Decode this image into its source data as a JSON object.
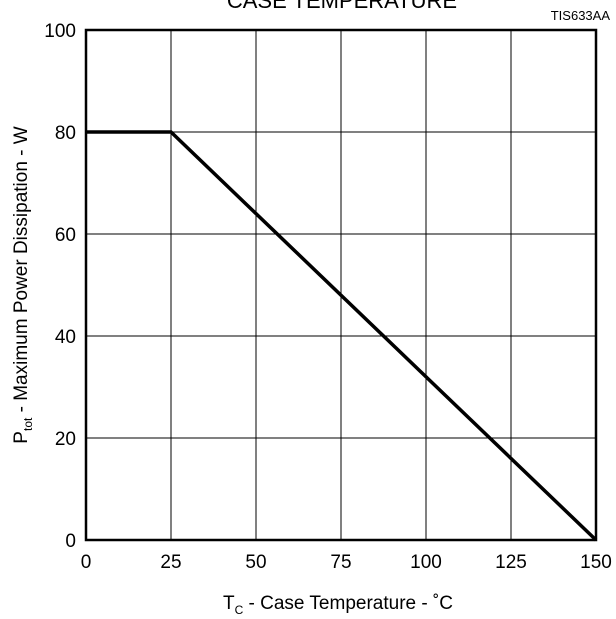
{
  "chart_data": {
    "type": "line",
    "title": "CASE TEMPERATURE",
    "code": "TIS633AA",
    "xlabel": {
      "symbol": "T",
      "subscript": "C",
      "text": " - Case Temperature - ˚C"
    },
    "ylabel": {
      "symbol": "P",
      "subscript": "tot",
      "text": " - Maximum Power Dissipation - W"
    },
    "xlim": [
      0,
      150
    ],
    "ylim": [
      0,
      100
    ],
    "xticks": [
      0,
      25,
      50,
      75,
      100,
      125,
      150
    ],
    "yticks": [
      0,
      20,
      40,
      60,
      80,
      100
    ],
    "grid": true,
    "series": [
      {
        "x": [
          0,
          25,
          150
        ],
        "y": [
          80,
          80,
          0
        ]
      }
    ],
    "line_color": "#000000"
  }
}
